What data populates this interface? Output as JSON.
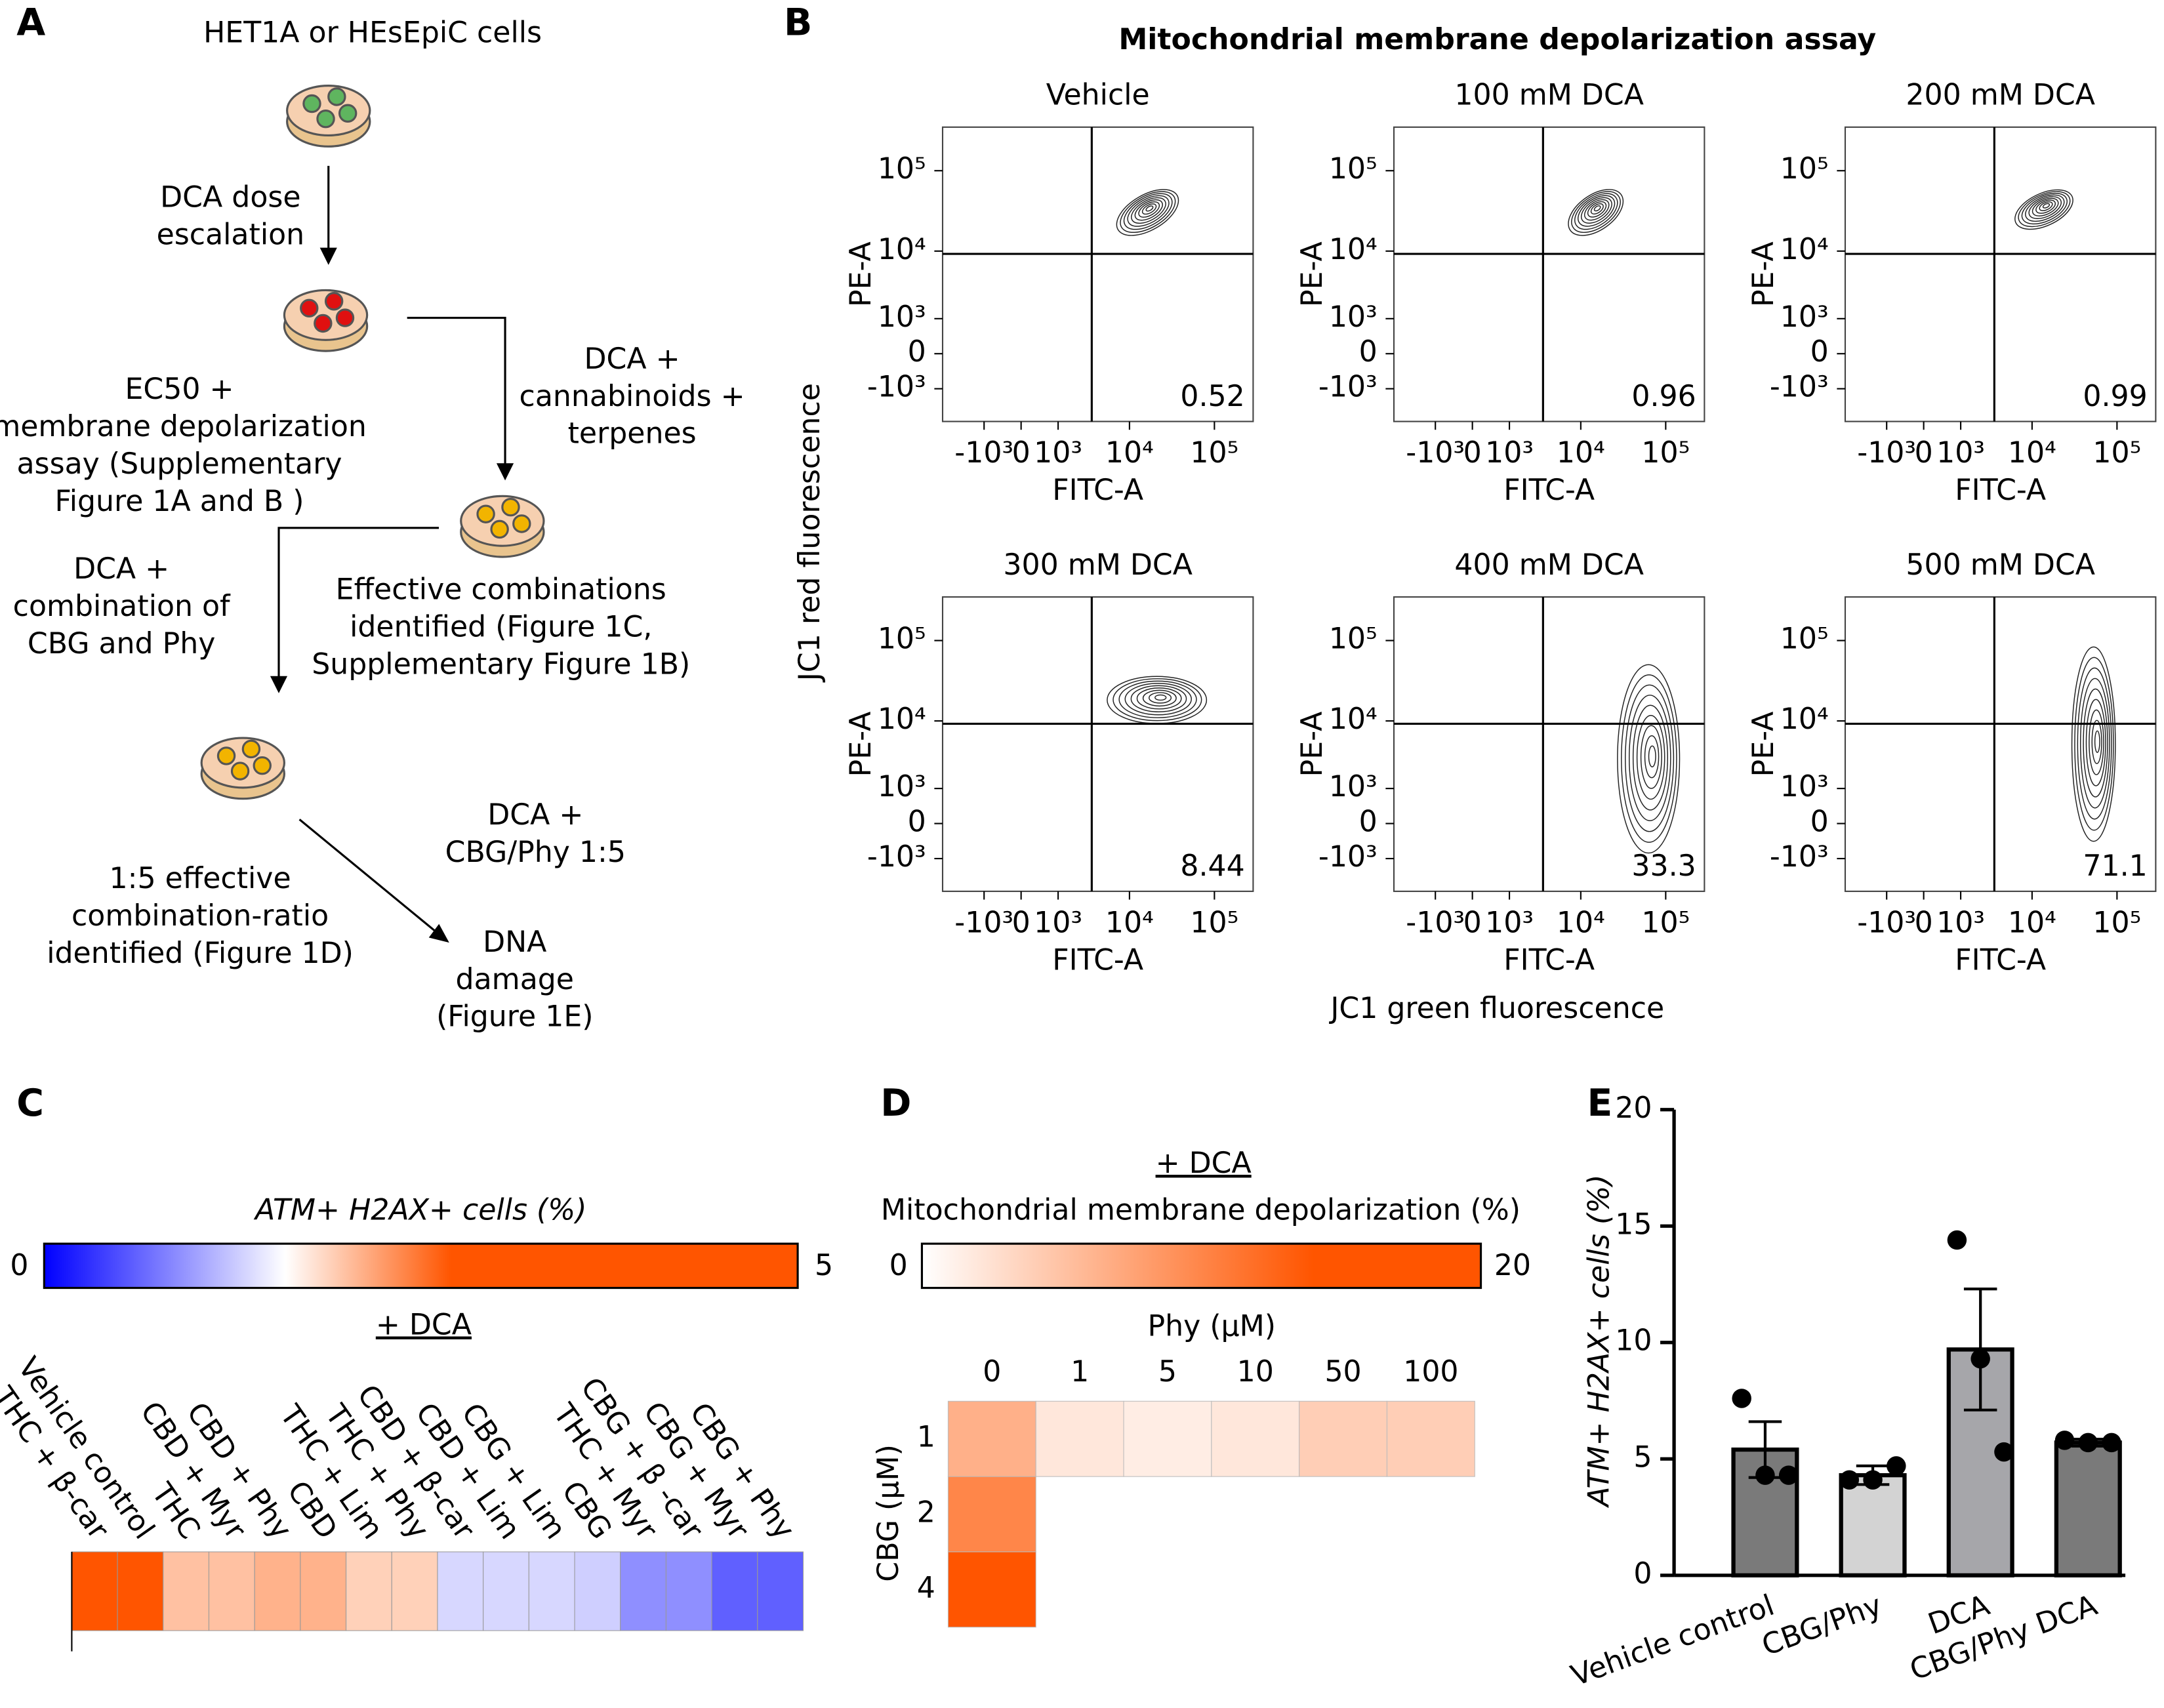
{
  "panel_a": {
    "label": "A",
    "source": "HET1A or HEsEpiC cells",
    "steps": [
      [
        "DCA dose",
        "escalation"
      ],
      [
        "EC50 +",
        "membrane depolarization",
        "assay (Supplementary",
        "Figure 1A and B )"
      ],
      [
        "DCA +",
        "cannabinoids +",
        "terpenes"
      ],
      [
        "DCA +",
        "combination of",
        "CBG and Phy"
      ],
      [
        "Effective combinations",
        "identified (Figure 1C,",
        "Supplementary Figure 1B)"
      ],
      [
        "DCA +",
        "CBG/Phy 1:5"
      ],
      [
        "1:5 effective",
        "combination-ratio",
        "identified (Figure 1D)"
      ],
      [
        "DNA",
        "damage",
        "(Figure 1E)"
      ]
    ]
  },
  "chart_data": [
    {
      "type": "flow",
      "label": "B",
      "title": "Mitochondrial membrane depolarization assay",
      "x_title": "JC1 green fluorescence",
      "y_title": "JC1 red fluorescence",
      "x_label": "FITC-A",
      "y_label": "PE-A",
      "xlim": [
        -4200,
        280000
      ],
      "ylim": [
        -3400,
        340000
      ],
      "xticks": [
        {
          "value": -1000,
          "label": "-10³"
        },
        0,
        {
          "value": 1000,
          "label": "10³"
        },
        {
          "value": 10000,
          "label": "10⁴"
        },
        {
          "value": 100000,
          "label": "10⁵"
        }
      ],
      "yticks": [
        {
          "value": -1000,
          "label": "-10³"
        },
        0,
        {
          "value": 1000,
          "label": "10³"
        },
        {
          "value": 10000,
          "label": "10⁴"
        },
        {
          "value": 100000,
          "label": "10⁵"
        }
      ],
      "gate": [
        3300,
        9200
      ],
      "plots": [
        {
          "title": "Vehicle",
          "value": 0.52
        },
        {
          "title": "100 mM DCA",
          "value": 0.96
        },
        {
          "title": "200 mM DCA",
          "value": 0.99
        },
        {
          "title": "300 mM DCA",
          "value": 8.44
        },
        {
          "title": "400 mM DCA",
          "value": 33.3
        },
        {
          "title": "500 mM DCA",
          "value": 71.1
        }
      ]
    },
    {
      "type": "heatmap",
      "label": "C",
      "title": "ATM+ H2AX+ cells (%)",
      "subtitle": "+ DCA",
      "zlim": [
        0,
        5
      ],
      "colorscale": [
        [
          0,
          "#0000ff"
        ],
        [
          1.6,
          "#ffffff"
        ],
        [
          2.7,
          "#ff5500"
        ],
        [
          5,
          "#ff5500"
        ]
      ],
      "categories": [
        "THC + β-car",
        "Vehicle control",
        "THC",
        "CBD + Myr",
        "CBD + Phy",
        "CBD",
        "THC + Lim",
        "THC + Phy",
        "CBD + β-car",
        "CBD + Lim",
        "CBG + Lim",
        "CBG",
        "THC + Myr",
        "CBG + β -car",
        "CBG + Myr",
        "CBG + Phy"
      ],
      "values": [
        3.0,
        2.8,
        2.0,
        2.0,
        2.1,
        2.1,
        1.9,
        1.9,
        1.35,
        1.35,
        1.35,
        1.3,
        0.9,
        0.9,
        0.6,
        0.6
      ]
    },
    {
      "type": "heatmap_grid",
      "label": "D",
      "subtitle": "+ DCA",
      "title": "Mitochondrial membrane depolarization (%)",
      "zlim": [
        0,
        20
      ],
      "colorscale": [
        [
          0,
          "#ffffff"
        ],
        [
          14,
          "#ff5500"
        ],
        [
          20,
          "#ff5500"
        ]
      ],
      "x_label": "Phy (µM)",
      "y_label": "CBG (µM)",
      "columns": [
        0,
        1,
        5,
        10,
        50,
        100
      ],
      "rows": [
        1,
        2,
        4
      ],
      "values": [
        [
          6.5,
          2,
          1.5,
          2,
          4,
          4
        ],
        [
          10,
          null,
          null,
          null,
          null,
          null
        ],
        [
          14,
          null,
          null,
          null,
          null,
          null
        ]
      ]
    },
    {
      "type": "bar",
      "label": "E",
      "y_label": "ATM+ H2AX+ cells (%)",
      "categories": [
        "Vehicle control",
        "CBG/Phy",
        "DCA",
        "CBG/Phy DCA"
      ],
      "values": [
        5.4,
        4.3,
        9.7,
        5.7
      ],
      "errors": [
        1.2,
        0.4,
        2.6,
        0.15
      ],
      "points": [
        [
          7.6,
          4.3,
          4.3
        ],
        [
          4.1,
          4.1,
          4.7
        ],
        [
          14.4,
          9.3,
          5.3
        ],
        [
          5.8,
          5.7,
          5.7
        ]
      ],
      "colors": [
        "#7a7a7a",
        "#d3d3d3",
        "#a6a6aa",
        "#7a7a7a"
      ],
      "ylim": [
        0,
        20
      ],
      "yticks": [
        0,
        5,
        10,
        15,
        20
      ]
    }
  ]
}
